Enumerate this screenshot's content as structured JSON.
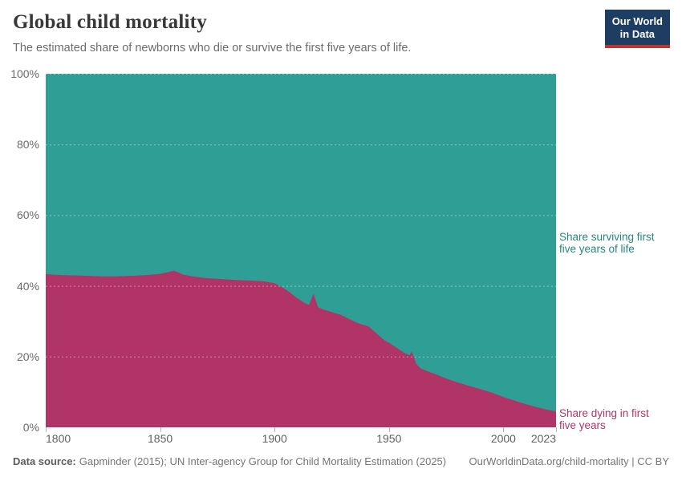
{
  "header": {
    "title": "Global child mortality",
    "subtitle": "The estimated share of newborns who die or survive the first five years of life.",
    "logo": {
      "line1": "Our World",
      "line2": "in Data",
      "bg_color": "#1d3d63",
      "stripe_color": "#c0342f"
    }
  },
  "series_labels": {
    "surviving_lines": [
      "Share surviving first",
      "five years of life"
    ],
    "dying_lines": [
      "Share dying in first",
      "five years"
    ]
  },
  "chart_data": {
    "type": "area",
    "stacked": true,
    "normalized_to_100_percent": true,
    "title": "Global child mortality",
    "xlabel": "",
    "ylabel": "",
    "unit": "%",
    "xlim": [
      1800,
      2023
    ],
    "ylim": [
      0,
      100
    ],
    "grid": "dashed horizontal, white semi-transparent, legend labels at right edge",
    "x_tick_values": [
      1800,
      1850,
      1900,
      1950,
      2000,
      2023
    ],
    "x_tick_labels": [
      "1800",
      "1850",
      "1900",
      "1950",
      "2000",
      "2023"
    ],
    "y_tick_values": [
      0,
      20,
      40,
      60,
      80,
      100
    ],
    "y_tick_labels": [
      "0%",
      "20%",
      "40%",
      "60%",
      "80%",
      "100%"
    ],
    "x": [
      1800,
      1805,
      1810,
      1815,
      1820,
      1825,
      1830,
      1835,
      1840,
      1845,
      1850,
      1853,
      1856,
      1858,
      1860,
      1865,
      1870,
      1875,
      1880,
      1885,
      1890,
      1895,
      1900,
      1903,
      1906,
      1910,
      1913,
      1915,
      1917,
      1919,
      1921,
      1925,
      1929,
      1933,
      1937,
      1941,
      1945,
      1948,
      1951,
      1954,
      1957,
      1959,
      1960,
      1962,
      1964,
      1967,
      1970,
      1975,
      1980,
      1985,
      1990,
      1995,
      2000,
      2005,
      2010,
      2015,
      2019,
      2023
    ],
    "series": [
      {
        "name": "Share surviving first five years of life",
        "color": "#2f9e94",
        "values": [
          56.7,
          56.9,
          57.0,
          57.1,
          57.2,
          57.3,
          57.3,
          57.2,
          57.1,
          56.9,
          56.6,
          56.2,
          55.7,
          56.2,
          56.8,
          57.4,
          57.8,
          58.0,
          58.2,
          58.4,
          58.5,
          58.7,
          59.2,
          60.3,
          61.5,
          63.5,
          64.8,
          65.4,
          62.2,
          66.0,
          66.6,
          67.4,
          68.2,
          69.5,
          70.7,
          71.4,
          73.7,
          75.4,
          76.5,
          77.8,
          79.1,
          79.6,
          78.6,
          82.1,
          83.4,
          84.2,
          84.9,
          86.2,
          87.3,
          88.3,
          89.2,
          90.2,
          91.4,
          92.5,
          93.5,
          94.4,
          95.0,
          95.5
        ]
      },
      {
        "name": "Share dying in first five years",
        "color": "#b03566",
        "values": [
          43.3,
          43.1,
          43.0,
          42.9,
          42.8,
          42.7,
          42.7,
          42.8,
          42.9,
          43.1,
          43.4,
          43.8,
          44.3,
          43.8,
          43.2,
          42.6,
          42.2,
          42.0,
          41.8,
          41.6,
          41.5,
          41.3,
          40.8,
          39.7,
          38.5,
          36.5,
          35.2,
          34.6,
          37.8,
          34.0,
          33.4,
          32.6,
          31.8,
          30.5,
          29.3,
          28.6,
          26.3,
          24.6,
          23.5,
          22.2,
          20.9,
          20.4,
          21.4,
          17.9,
          16.6,
          15.8,
          15.1,
          13.8,
          12.7,
          11.7,
          10.8,
          9.8,
          8.6,
          7.5,
          6.5,
          5.6,
          5.0,
          4.5
        ]
      }
    ]
  },
  "footer": {
    "source_label": "Data source:",
    "source_text": "Gapminder (2015); UN Inter-agency Group for Child Mortality Estimation (2025)",
    "link_text": "OurWorldinData.org/child-mortality | CC BY"
  }
}
